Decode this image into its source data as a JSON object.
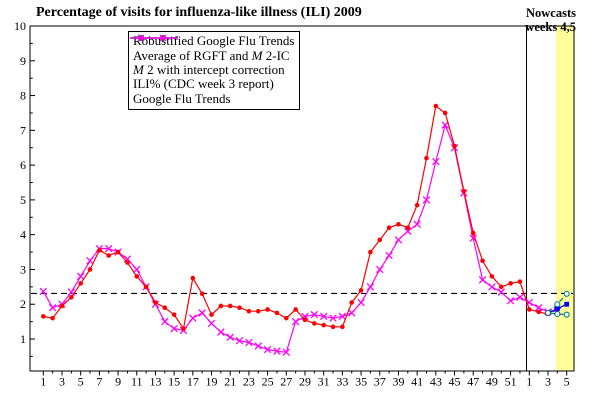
{
  "title": "Percentage of visits for influenza-like illness (ILI) 2009",
  "nowcast_annotation": {
    "line1": "Nowcasts",
    "line2": "weeks 4,5"
  },
  "chart_data": {
    "type": "line",
    "title": "Percentage of visits for influenza-like illness (ILI) 2009",
    "xlabel": "",
    "ylabel": "",
    "x_axis": {
      "unit": "week number (2009 weeks 1-52, then 2010 weeks 1-5)",
      "total_weeks": 57,
      "major_tick_labels_2009": [
        "1",
        "3",
        "5",
        "7",
        "9",
        "11",
        "13",
        "15",
        "17",
        "19",
        "21",
        "23",
        "25",
        "27",
        "29",
        "31",
        "33",
        "35",
        "37",
        "39",
        "41",
        "43",
        "45",
        "47",
        "49",
        "51"
      ],
      "major_tick_labels_2010": [
        "1",
        "3",
        "5"
      ]
    },
    "y_axis": {
      "min": 0,
      "max": 10,
      "major_ticks": [
        1,
        2,
        3,
        4,
        5,
        6,
        7,
        8,
        9,
        10
      ],
      "minor_step": 0.5
    },
    "baseline": {
      "name": "epidemic-threshold",
      "value": 2.31,
      "style": "dashed",
      "color": "#000000"
    },
    "year_divider_after_2009_week": 52,
    "nowcast_band": {
      "weeks_2010": [
        4,
        5
      ],
      "color": "#FFFF99",
      "label": "Nowcasts weeks 4,5"
    },
    "legend_position": "top-left-inside",
    "series": [
      {
        "id": "rgft",
        "label": "Robustified Google Flu Trends",
        "color": "#008080",
        "line": "dashed",
        "marker": "circle-open",
        "start_global_week": 55,
        "values": [
          1.75,
          2.0,
          2.3
        ]
      },
      {
        "id": "avg",
        "label": "Average of RGFT and M 2-IC",
        "color": "#0000FF",
        "line": "solid",
        "marker": "square-filled",
        "start_global_week": 55,
        "values": [
          1.75,
          1.87,
          2.0
        ]
      },
      {
        "id": "m2ic",
        "label": "M 2 with intercept correction",
        "color": "#008080",
        "line": "solid",
        "marker": "circle-open",
        "start_global_week": 55,
        "values": [
          1.75,
          1.72,
          1.7
        ]
      },
      {
        "id": "ili",
        "label": "ILI% (CDC week 3 report)",
        "color": "#FF0000",
        "line": "solid",
        "marker": "circle-filled",
        "start_global_week": 1,
        "values": [
          1.65,
          1.6,
          1.95,
          2.2,
          2.6,
          3.0,
          3.55,
          3.4,
          3.5,
          3.2,
          2.8,
          2.5,
          2.05,
          1.9,
          1.7,
          1.3,
          2.75,
          2.3,
          1.7,
          1.95,
          1.95,
          1.9,
          1.8,
          1.8,
          1.85,
          1.75,
          1.6,
          1.85,
          1.55,
          1.45,
          1.4,
          1.35,
          1.35,
          2.05,
          2.4,
          3.5,
          3.85,
          4.2,
          4.3,
          4.2,
          4.85,
          6.2,
          7.7,
          7.5,
          6.55,
          5.25,
          4.05,
          3.25,
          2.8,
          2.5,
          2.6,
          2.65,
          1.85,
          1.78,
          1.72
        ]
      },
      {
        "id": "gft",
        "label": "Google Flu Trends",
        "color": "#FF00FF",
        "line": "solid",
        "marker": "x",
        "start_global_week": 1,
        "values": [
          2.37,
          1.9,
          2.0,
          2.35,
          2.8,
          3.25,
          3.6,
          3.6,
          3.5,
          3.3,
          3.0,
          2.5,
          2.0,
          1.5,
          1.3,
          1.25,
          1.6,
          1.75,
          1.45,
          1.2,
          1.05,
          0.95,
          0.9,
          0.8,
          0.7,
          0.65,
          0.62,
          1.5,
          1.65,
          1.7,
          1.65,
          1.6,
          1.65,
          1.75,
          2.05,
          2.5,
          3.0,
          3.4,
          3.85,
          4.1,
          4.3,
          5.0,
          6.1,
          7.15,
          6.5,
          5.2,
          3.9,
          2.7,
          2.5,
          2.35,
          2.1,
          2.2,
          2.05,
          1.9,
          1.78,
          1.8
        ]
      }
    ]
  }
}
